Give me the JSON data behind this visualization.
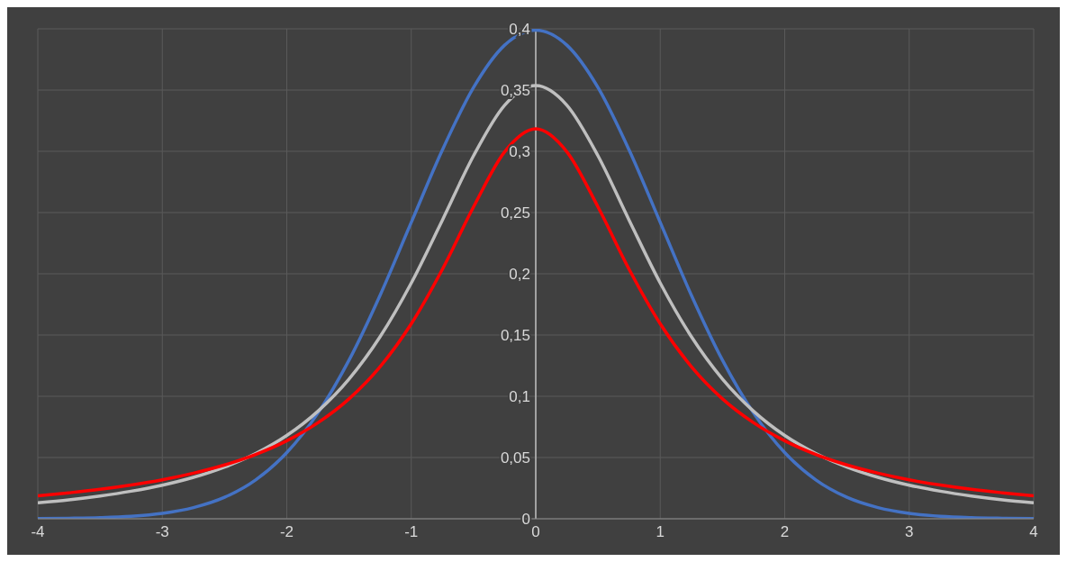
{
  "chart_data": {
    "type": "line",
    "x": [
      -4,
      -3.75,
      -3.5,
      -3.25,
      -3,
      -2.75,
      -2.5,
      -2.25,
      -2,
      -1.75,
      -1.5,
      -1.25,
      -1,
      -0.75,
      -0.5,
      -0.25,
      0,
      0.25,
      0.5,
      0.75,
      1,
      1.25,
      1.5,
      1.75,
      2,
      2.25,
      2.5,
      2.75,
      3,
      3.25,
      3.5,
      3.75,
      4
    ],
    "series": [
      {
        "color": "#4472c4",
        "values": [
          0.0001,
          0.0004,
          0.0009,
          0.002,
          0.0044,
          0.0091,
          0.0175,
          0.0317,
          0.054,
          0.0863,
          0.1295,
          0.1826,
          0.242,
          0.3011,
          0.3521,
          0.3867,
          0.3989,
          0.3867,
          0.3521,
          0.3011,
          0.242,
          0.1826,
          0.1295,
          0.0863,
          0.054,
          0.0317,
          0.0175,
          0.0091,
          0.0044,
          0.002,
          0.0009,
          0.0004,
          0.0001
        ]
      },
      {
        "color": "#bfbfbf",
        "values": [
          0.0131,
          0.0155,
          0.0186,
          0.0225,
          0.0274,
          0.0338,
          0.0422,
          0.0533,
          0.068,
          0.0878,
          0.1141,
          0.1487,
          0.1925,
          0.2438,
          0.2963,
          0.3376,
          0.3536,
          0.3376,
          0.2963,
          0.2438,
          0.1925,
          0.1487,
          0.1141,
          0.0878,
          0.068,
          0.0533,
          0.0422,
          0.0338,
          0.0274,
          0.0225,
          0.0186,
          0.0155,
          0.0131
        ]
      },
      {
        "color": "#ff0000",
        "values": [
          0.0187,
          0.0212,
          0.024,
          0.0275,
          0.0318,
          0.0372,
          0.0439,
          0.0525,
          0.0637,
          0.0784,
          0.0979,
          0.1242,
          0.1592,
          0.2037,
          0.2546,
          0.2996,
          0.3183,
          0.2996,
          0.2546,
          0.2037,
          0.1592,
          0.1242,
          0.0979,
          0.0784,
          0.0637,
          0.0525,
          0.0439,
          0.0372,
          0.0318,
          0.0275,
          0.024,
          0.0212,
          0.0187
        ]
      }
    ],
    "xlim": [
      -4,
      4
    ],
    "xticks": [
      -4,
      -3,
      -2,
      -1,
      0,
      1,
      2,
      3,
      4
    ],
    "ylim": [
      0,
      0.4
    ],
    "yticks": [
      0,
      {
        "value": 0.05,
        "label": "0,05"
      },
      {
        "value": 0.1,
        "label": "0,1"
      },
      {
        "value": 0.15,
        "label": "0,15"
      },
      {
        "value": 0.2,
        "label": "0,2"
      },
      {
        "value": 0.25,
        "label": "0,25"
      },
      {
        "value": 0.3,
        "label": "0,3"
      },
      {
        "value": 0.35,
        "label": "0,35"
      },
      {
        "value": 0.4,
        "label": "0,4"
      }
    ],
    "grid": true,
    "marker": "none",
    "line_style": "solid",
    "legend": false
  }
}
